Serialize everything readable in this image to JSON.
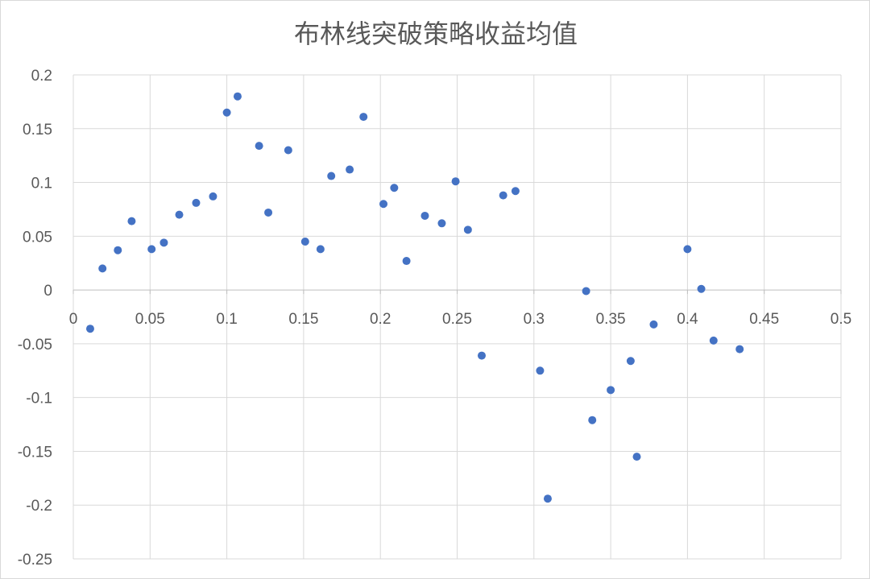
{
  "chart_data": {
    "type": "scatter",
    "title": "布林线突破策略收益均值",
    "xlabel": "",
    "ylabel": "",
    "xlim": [
      0,
      0.5
    ],
    "ylim": [
      -0.25,
      0.2
    ],
    "x_ticks": [
      0,
      0.05,
      0.1,
      0.15,
      0.2,
      0.25,
      0.3,
      0.35,
      0.4,
      0.45,
      0.5
    ],
    "x_tick_labels": [
      "0",
      "0.05",
      "0.1",
      "0.15",
      "0.2",
      "0.25",
      "0.3",
      "0.35",
      "0.4",
      "0.45",
      "0.5"
    ],
    "y_ticks": [
      0.2,
      0.15,
      0.1,
      0.05,
      0,
      -0.05,
      -0.1,
      -0.15,
      -0.2,
      -0.25
    ],
    "y_tick_labels": [
      "0.2",
      "0.15",
      "0.1",
      "0.05",
      "0",
      "-0.05",
      "-0.1",
      "-0.15",
      "-0.2",
      "-0.25"
    ],
    "grid": true,
    "legend": "none",
    "marker_color": "#4472c4",
    "series": [
      {
        "points": [
          [
            0.011,
            -0.036
          ],
          [
            0.019,
            0.02
          ],
          [
            0.029,
            0.037
          ],
          [
            0.038,
            0.064
          ],
          [
            0.051,
            0.038
          ],
          [
            0.059,
            0.044
          ],
          [
            0.069,
            0.07
          ],
          [
            0.08,
            0.081
          ],
          [
            0.091,
            0.087
          ],
          [
            0.1,
            0.165
          ],
          [
            0.107,
            0.18
          ],
          [
            0.121,
            0.134
          ],
          [
            0.127,
            0.072
          ],
          [
            0.14,
            0.13
          ],
          [
            0.151,
            0.045
          ],
          [
            0.161,
            0.038
          ],
          [
            0.168,
            0.106
          ],
          [
            0.18,
            0.112
          ],
          [
            0.189,
            0.161
          ],
          [
            0.202,
            0.08
          ],
          [
            0.209,
            0.095
          ],
          [
            0.217,
            0.027
          ],
          [
            0.229,
            0.069
          ],
          [
            0.24,
            0.062
          ],
          [
            0.249,
            0.101
          ],
          [
            0.257,
            0.056
          ],
          [
            0.266,
            -0.061
          ],
          [
            0.28,
            0.088
          ],
          [
            0.288,
            0.092
          ],
          [
            0.304,
            -0.075
          ],
          [
            0.309,
            -0.194
          ],
          [
            0.334,
            -0.001
          ],
          [
            0.338,
            -0.121
          ],
          [
            0.35,
            -0.093
          ],
          [
            0.363,
            -0.066
          ],
          [
            0.367,
            -0.155
          ],
          [
            0.378,
            -0.032
          ],
          [
            0.4,
            0.038
          ],
          [
            0.409,
            0.001
          ],
          [
            0.417,
            -0.047
          ],
          [
            0.434,
            -0.055
          ]
        ]
      }
    ]
  }
}
